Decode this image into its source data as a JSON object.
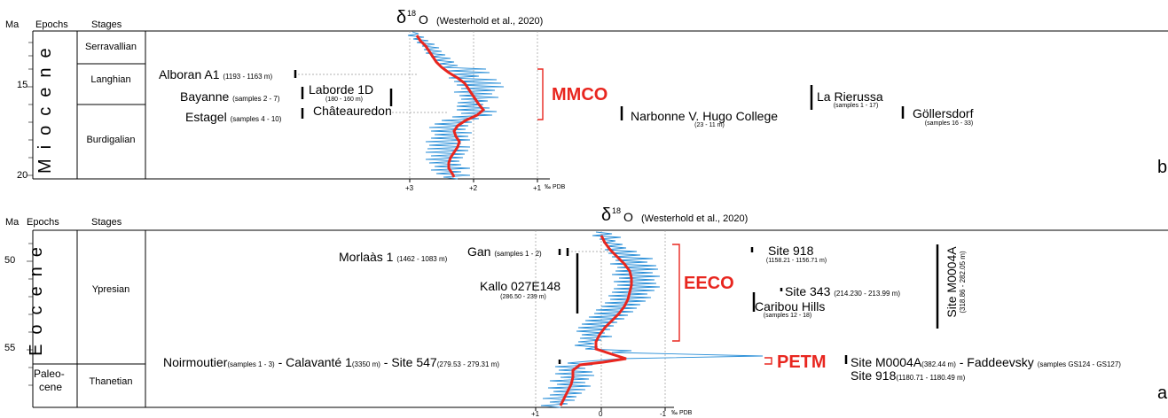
{
  "panel_b": {
    "col_ma": "Ma",
    "col_epochs": "Epochs",
    "col_stages": "Stages",
    "title_delta": "δ",
    "title_sup": "18",
    "title_o": "O",
    "title_ref": "(Westerhold et al., 2020)",
    "epoch": "Miocene",
    "ticks": [
      "15",
      "20"
    ],
    "stages": [
      "Serravallian",
      "Langhian",
      "Burdigalian"
    ],
    "axis_ticks": [
      "+3",
      "+2",
      "+1"
    ],
    "axis_unit": "‰ PDB",
    "event": "MMCO",
    "panel_letter": "b",
    "sites": {
      "alboran_name": "Alboran A1",
      "alboran_range": "(1193 - 1163 m)",
      "bayanne_name": "Bayanne",
      "bayanne_samples": "(samples 2 - 7)",
      "estagel_name": "Estagel",
      "estagel_samples": "(samples 4 - 10)",
      "laborde_name": "Laborde 1D",
      "laborde_range": "(180 - 160 m)",
      "chateauredon_name": "Châteauredon",
      "narbonne_name": "Narbonne V. Hugo College",
      "narbonne_range": "(23 - 11 m)",
      "rierussa_name": "La Rierussa",
      "rierussa_samples": "(samples 1 - 17)",
      "gollersdorf_name": "Göllersdorf",
      "gollersdorf_samples": "(samples 16 - 33)"
    }
  },
  "panel_a": {
    "col_ma": "Ma",
    "col_epochs": "Epochs",
    "col_stages": "Stages",
    "title_delta": "δ",
    "title_sup": "18",
    "title_o": "O",
    "title_ref": "(Westerhold et al., 2020)",
    "epoch": "Eocene",
    "epoch2_line1": "Paleo-",
    "epoch2_line2": "cene",
    "ticks": [
      "50",
      "55"
    ],
    "stages": [
      "Ypresian",
      "Thanetian"
    ],
    "axis_ticks": [
      "+1",
      "0",
      "-1"
    ],
    "axis_unit": "‰ PDB",
    "event_eeco": "EECO",
    "event_petm": "PETM",
    "panel_letter": "a",
    "sites": {
      "morlaas_name": "Morlaàs 1",
      "morlaas_range": "(1462 - 1083 m)",
      "gan_name": "Gan",
      "gan_samples": "(samples 1 - 2)",
      "kallo_name": "Kallo 027E148",
      "kallo_range": "(286.50 - 239 m)",
      "site918_name": "Site 918",
      "site918_range": "(1158.21 - 1156.71 m)",
      "site343_name": "Site 343",
      "site343_range": "(214.230 - 213.99 m)",
      "caribou_name": "Caribou Hills",
      "caribou_samples": "(samples 12 - 18)",
      "m0004a_v_name": "Site M0004A",
      "m0004a_v_range": "(318.86 - 282.05 m)",
      "noirmoutier_name": "Noirmoutier",
      "noirmoutier_samples": "(samples 1 - 3)",
      "dash1": "-",
      "calavante_name": "Calavanté 1",
      "calavante_range": "(3350 m)",
      "dash2": "- Site 547",
      "site547_range": "(279.53 - 279.31 m)",
      "petm_m0004a_name": "Site M0004A",
      "petm_m0004a_range": "(382.44 m)",
      "dash3": "- Faddeevsky",
      "faddeevsky_samples": "(samples GS124 - GS127)",
      "petm_918_name": "Site 918",
      "petm_918_range": "(1180.71 - 1180.49 m)"
    }
  },
  "colors": {
    "curve_raw": "#2a8fd8",
    "curve_smooth": "#e8261f",
    "event_label": "#e8261f"
  }
}
